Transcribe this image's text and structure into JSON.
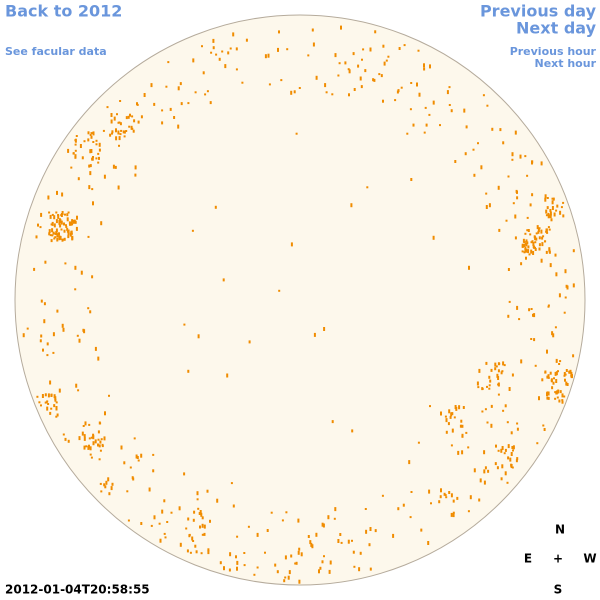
{
  "links": {
    "back": "Back to 2012",
    "facular": "See facular data",
    "previous_day": "Previous day",
    "next_day": "Next day",
    "previous_hour": "Previous hour",
    "next_hour": "Next hour"
  },
  "timestamp": "2012-01-04T20:58:55",
  "compass": {
    "north": "N",
    "east": "E",
    "center": "+",
    "west": "W",
    "south": "S"
  }
}
